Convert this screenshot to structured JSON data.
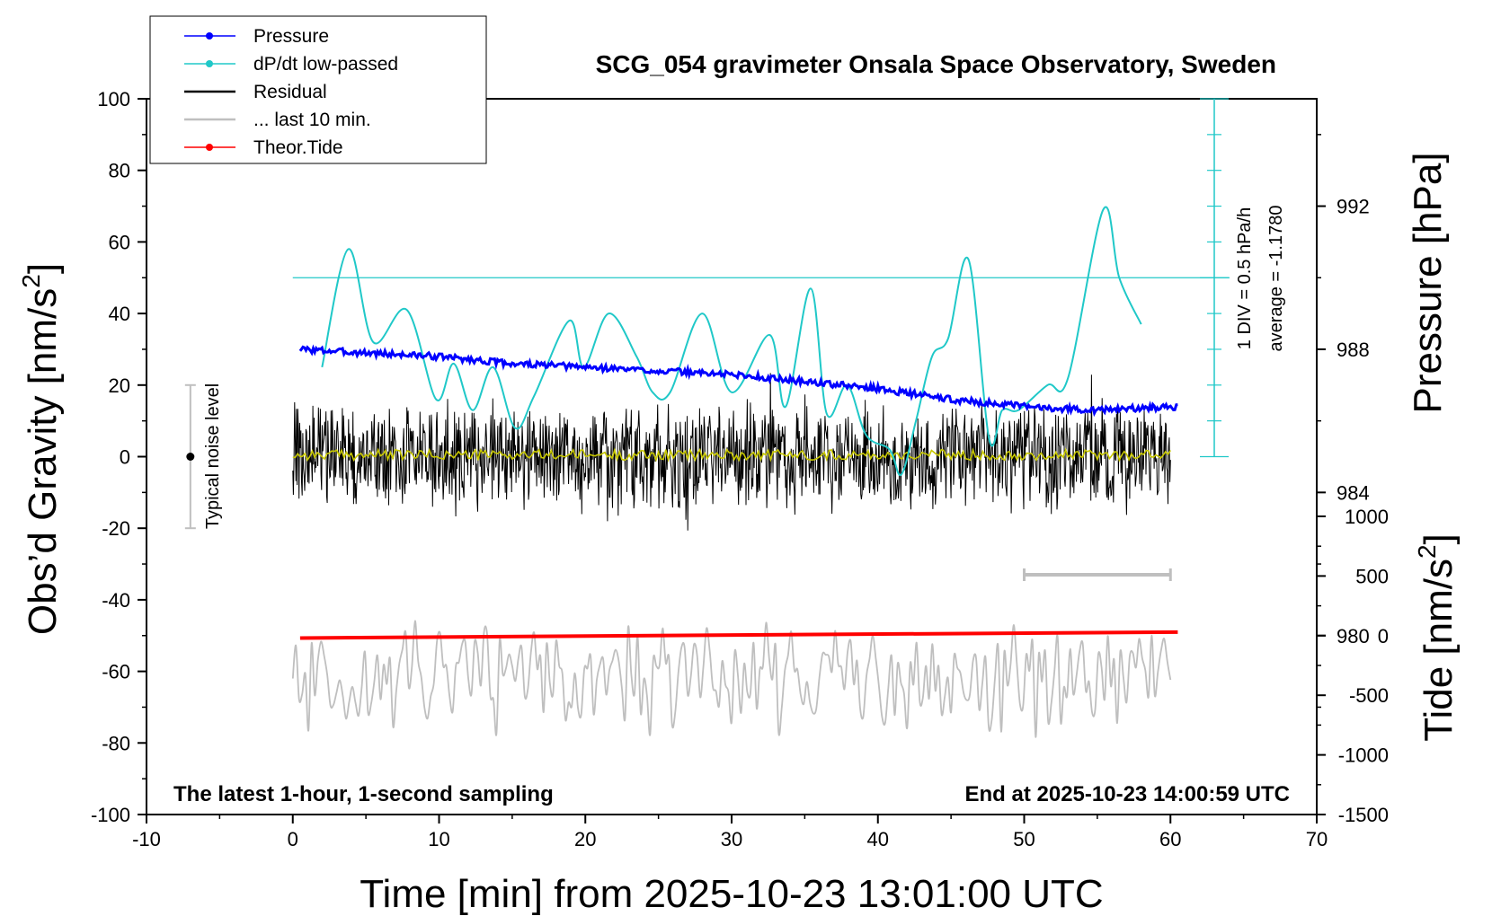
{
  "chart_data": {
    "type": "line",
    "title": "SCG_054 gravimeter Onsala Space Observatory, Sweden",
    "xlabel": "Time [min] from 2025-10-23 13:01:00 UTC",
    "ylabel_left_main": "Obs’d Gravity [nm/s",
    "ylabel_left_sup": "2",
    "ylabel_left_tail": "]",
    "ylabel_right_pressure": "Pressure [hPa]",
    "ylabel_right_tide_main": "Tide [nm/s",
    "ylabel_right_tide_sup": "2",
    "ylabel_right_tide_tail": "]",
    "xlim": [
      -10,
      70
    ],
    "ylim": [
      -100,
      100
    ],
    "pressure_lim": [
      975,
      995
    ],
    "tide_lim": [
      -1500,
      1500
    ],
    "x_ticks": [
      "-10",
      "0",
      "10",
      "20",
      "30",
      "40",
      "50",
      "60",
      "70"
    ],
    "y_ticks": [
      "100",
      "80",
      "60",
      "40",
      "20",
      "0",
      "-20",
      "-40",
      "-60",
      "-80",
      "-100"
    ],
    "pressure_ticks": [
      "992",
      "988",
      "984",
      "980"
    ],
    "tide_ticks": [
      "1000",
      "500",
      "0",
      "-500",
      "-1000",
      "-1500"
    ],
    "bottom_left_note": "The latest 1-hour, 1-second sampling",
    "bottom_right_note": "End at 2025-10-23 14:00:59 UTC",
    "noise_label": "Typical noise level",
    "noise_bar": [
      -20,
      20
    ],
    "dpdt_scale_label": "1 DIV = 0.5 hPa/h",
    "dpdt_average_label": "average = -1.1780",
    "legend": [
      {
        "name": "Pressure",
        "color": "#0000ff",
        "marker": true
      },
      {
        "name": "dP/dt low-passed",
        "color": "#20c8c8",
        "marker": true
      },
      {
        "name": "Residual",
        "color": "#000000",
        "marker": false
      },
      {
        "name": "... last 10 min.",
        "color": "#bfbfbf",
        "marker": false
      },
      {
        "name": "Theor.Tide",
        "color": "#ff0000",
        "marker": true
      }
    ],
    "series": [
      {
        "name": "Pressure",
        "color": "#0000ff",
        "axis": "pressure",
        "x": [
          0.5,
          5,
          10,
          15,
          20,
          25,
          30,
          35,
          40,
          45,
          50,
          55,
          60.5
        ],
        "values": [
          988.0,
          987.9,
          987.8,
          987.6,
          987.5,
          987.4,
          987.3,
          987.1,
          986.9,
          986.6,
          986.4,
          986.3,
          986.4
        ]
      },
      {
        "name": "dP/dt low-passed",
        "color": "#20c8c8",
        "axis": "gravity",
        "x": [
          2,
          3.8,
          5.5,
          7.8,
          9.8,
          11,
          12.3,
          13.7,
          15.2,
          16.5,
          18.9,
          19.9,
          21.6,
          23.5,
          24.6,
          25.8,
          28,
          30,
          32.6,
          33.7,
          35.4,
          36.5,
          37.9,
          39.2,
          40.8,
          41.6,
          42.6,
          43.7,
          44.8,
          46.2,
          47.6,
          48.5,
          49.6,
          51.6,
          53,
          55.4,
          56.5,
          58
        ],
        "values": [
          25,
          58,
          32,
          41,
          16,
          26,
          13,
          25,
          8,
          17,
          38,
          25,
          40,
          28,
          18,
          18,
          40,
          18,
          34,
          14,
          47,
          12,
          20,
          6,
          2,
          -5,
          10,
          28,
          33,
          55,
          5,
          13,
          13,
          20,
          22,
          69,
          50,
          37
        ]
      },
      {
        "name": "Residual",
        "color": "#000000",
        "axis": "gravity",
        "x_range": [
          0,
          60
        ],
        "noise_amplitude": 14,
        "mean": 0
      },
      {
        "name": "... last 10 min.",
        "color": "#bfbfbf",
        "axis": "gravity",
        "x_range": [
          0,
          60
        ],
        "center": -62,
        "noise_amplitude": 13
      },
      {
        "name": "Theor.Tide",
        "color": "#ff0000",
        "axis": "tide",
        "x": [
          0.5,
          60.5
        ],
        "values": [
          -20,
          30
        ]
      },
      {
        "name": "Residual low-passed",
        "color": "#c8c800",
        "axis": "gravity",
        "x_range": [
          0,
          60
        ],
        "noise_amplitude": 1.5,
        "mean": 0.5
      }
    ],
    "dpdt_reference_line": 50,
    "last_10min_bar_x": [
      50,
      60
    ],
    "last_10min_bar_y": -33
  }
}
